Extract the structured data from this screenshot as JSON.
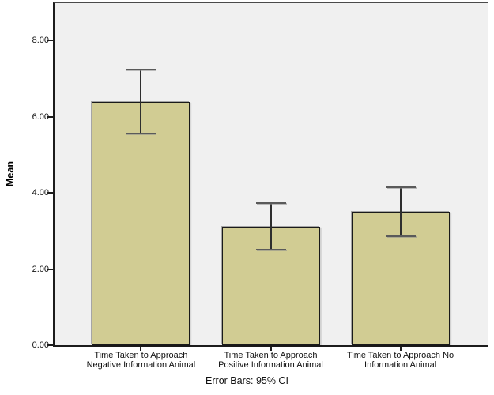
{
  "chart_data": {
    "type": "bar",
    "title": "",
    "ylabel": "Mean",
    "xlabel": "",
    "caption": "Error Bars: 95% CI",
    "legend": "none",
    "grid": false,
    "categories": [
      [
        "Time Taken to Approach",
        "Negative Information Animal"
      ],
      [
        "Time Taken to Approach",
        "Positive Information Animal"
      ],
      [
        "Time Taken to Approach No",
        "Information Animal"
      ]
    ],
    "values": [
      6.38,
      3.12,
      3.5
    ],
    "ci_upper": [
      7.23,
      3.74,
      4.14
    ],
    "ci_lower": [
      5.56,
      2.5,
      2.86
    ],
    "ylim": [
      0,
      8.98
    ],
    "ytick_labels": [
      "0.00",
      "2.00",
      "4.00",
      "6.00",
      "8.00"
    ],
    "ytick_values": [
      0,
      2,
      4,
      6,
      8
    ],
    "colors": {
      "bar_fill": "#d1cc93",
      "bar_border": "#1a1a1a",
      "plot_background": "#f0f0f0",
      "frame": "#4a4a4a",
      "error_line": "#2e2e2e",
      "error_cap": "#5a5a5a",
      "text": "#111111"
    }
  }
}
